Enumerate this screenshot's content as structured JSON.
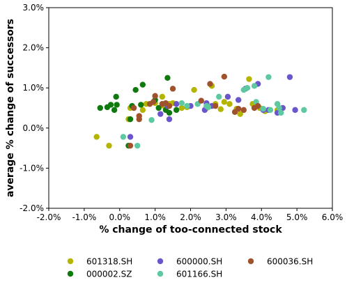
{
  "chart_data": {
    "type": "scatter",
    "xlabel": "% change of too-connected stock",
    "ylabel": "average % change of successors",
    "xlim": [
      -2.0,
      6.0
    ],
    "ylim": [
      -2.0,
      3.0
    ],
    "xticks": [
      "-2.0%",
      "-1.0%",
      "0.0%",
      "1.0%",
      "2.0%",
      "3.0%",
      "4.0%",
      "5.0%",
      "6.0%"
    ],
    "yticks": [
      "-2.0%",
      "-1.0%",
      "0.0%",
      "1.0%",
      "2.0%",
      "3.0%"
    ],
    "grid": false,
    "legend_position": "bottom",
    "series": [
      {
        "name": "601318.SH",
        "color": "#b5b500",
        "points": [
          [
            -0.65,
            -0.22
          ],
          [
            -0.3,
            -0.44
          ],
          [
            0.25,
            0.22
          ],
          [
            0.3,
            0.5
          ],
          [
            0.65,
            0.45
          ],
          [
            0.75,
            0.6
          ],
          [
            1.0,
            0.62
          ],
          [
            1.2,
            0.78
          ],
          [
            1.25,
            0.55
          ],
          [
            1.4,
            0.6
          ],
          [
            1.5,
            0.62
          ],
          [
            1.75,
            0.5
          ],
          [
            1.9,
            0.52
          ],
          [
            2.1,
            0.95
          ],
          [
            2.45,
            0.5
          ],
          [
            2.6,
            1.05
          ],
          [
            2.7,
            0.6
          ],
          [
            2.85,
            0.47
          ],
          [
            2.95,
            0.65
          ],
          [
            3.1,
            0.6
          ],
          [
            3.3,
            0.48
          ],
          [
            3.4,
            0.35
          ],
          [
            3.65,
            1.22
          ],
          [
            3.75,
            0.6
          ],
          [
            3.95,
            0.5
          ],
          [
            4.1,
            0.42
          ],
          [
            4.45,
            0.45
          ]
        ]
      },
      {
        "name": "000002.SZ",
        "color": "#0e7a0e",
        "points": [
          [
            -0.55,
            0.5
          ],
          [
            -0.35,
            0.52
          ],
          [
            -0.25,
            0.58
          ],
          [
            -0.15,
            0.45
          ],
          [
            -0.1,
            0.78
          ],
          [
            -0.08,
            0.58
          ],
          [
            0.25,
            -0.44
          ],
          [
            0.3,
            0.22
          ],
          [
            0.35,
            0.55
          ],
          [
            0.45,
            0.95
          ],
          [
            0.6,
            0.58
          ],
          [
            0.65,
            1.08
          ],
          [
            1.0,
            0.7
          ],
          [
            1.1,
            0.5
          ],
          [
            1.3,
            0.45
          ],
          [
            1.35,
            1.25
          ],
          [
            1.4,
            0.38
          ],
          [
            1.6,
            0.45
          ]
        ]
      },
      {
        "name": "600000.SH",
        "color": "#6a55cc",
        "points": [
          [
            0.3,
            -0.22
          ],
          [
            1.15,
            0.35
          ],
          [
            1.35,
            0.55
          ],
          [
            1.4,
            0.22
          ],
          [
            1.6,
            0.6
          ],
          [
            2.0,
            0.55
          ],
          [
            2.4,
            0.45
          ],
          [
            2.45,
            0.62
          ],
          [
            2.6,
            0.55
          ],
          [
            3.05,
            0.78
          ],
          [
            3.35,
            0.7
          ],
          [
            3.55,
            0.98
          ],
          [
            3.9,
            1.1
          ],
          [
            4.05,
            0.45
          ],
          [
            4.2,
            0.45
          ],
          [
            4.45,
            0.38
          ],
          [
            4.6,
            0.5
          ],
          [
            4.8,
            1.27
          ],
          [
            4.95,
            0.45
          ]
        ]
      },
      {
        "name": "601166.SH",
        "color": "#5ec9a0",
        "points": [
          [
            0.1,
            -0.22
          ],
          [
            0.5,
            -0.44
          ],
          [
            0.9,
            0.2
          ],
          [
            1.75,
            0.62
          ],
          [
            1.9,
            0.55
          ],
          [
            2.2,
            0.6
          ],
          [
            2.45,
            0.55
          ],
          [
            2.5,
            0.52
          ],
          [
            2.8,
            0.78
          ],
          [
            3.5,
            0.95
          ],
          [
            3.6,
            1.0
          ],
          [
            3.8,
            1.05
          ],
          [
            3.85,
            0.65
          ],
          [
            4.05,
            0.48
          ],
          [
            4.2,
            1.27
          ],
          [
            4.25,
            0.45
          ],
          [
            4.45,
            0.6
          ],
          [
            4.5,
            0.5
          ],
          [
            4.55,
            0.38
          ],
          [
            5.2,
            0.45
          ]
        ]
      },
      {
        "name": "600036.SH",
        "color": "#a0522d",
        "points": [
          [
            0.3,
            -0.44
          ],
          [
            0.4,
            0.5
          ],
          [
            0.55,
            0.22
          ],
          [
            0.55,
            0.3
          ],
          [
            0.85,
            0.6
          ],
          [
            0.95,
            0.65
          ],
          [
            1.0,
            0.8
          ],
          [
            1.2,
            0.6
          ],
          [
            1.3,
            0.62
          ],
          [
            1.4,
            0.55
          ],
          [
            1.5,
            0.98
          ],
          [
            2.3,
            0.68
          ],
          [
            2.55,
            1.1
          ],
          [
            2.7,
            0.55
          ],
          [
            2.95,
            1.28
          ],
          [
            3.25,
            0.4
          ],
          [
            3.35,
            0.48
          ],
          [
            3.5,
            0.45
          ],
          [
            3.8,
            0.5
          ],
          [
            3.9,
            0.55
          ]
        ]
      }
    ]
  }
}
